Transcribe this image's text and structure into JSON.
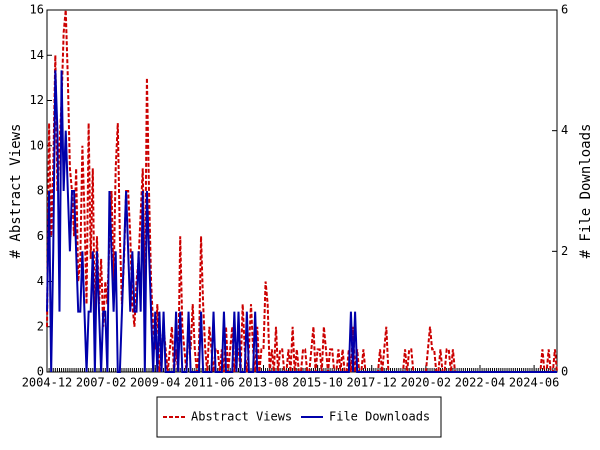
{
  "chart_data": {
    "type": "line",
    "categories": [
      "2004-12",
      null,
      null,
      null,
      null,
      null,
      null,
      null,
      null,
      null,
      null,
      null,
      null,
      null,
      null,
      null,
      null,
      null,
      null,
      null,
      null,
      null,
      null,
      null,
      null,
      null,
      "2007-02",
      null,
      null,
      null,
      null,
      null,
      null,
      null,
      null,
      null,
      null,
      null,
      null,
      null,
      null,
      null,
      null,
      null,
      null,
      null,
      null,
      null,
      null,
      null,
      null,
      null,
      "2009-04",
      null,
      null,
      null,
      null,
      null,
      null,
      null,
      null,
      null,
      null,
      null,
      null,
      null,
      null,
      null,
      null,
      null,
      null,
      null,
      null,
      null,
      null,
      null,
      null,
      null,
      "2011-06",
      null,
      null,
      null,
      null,
      null,
      null,
      null,
      null,
      null,
      null,
      null,
      null,
      null,
      null,
      null,
      null,
      null,
      null,
      null,
      null,
      null,
      null,
      null,
      null,
      null,
      "2013-08",
      null,
      null,
      null,
      null,
      null,
      null,
      null,
      null,
      null,
      null,
      null,
      null,
      null,
      null,
      null,
      null,
      null,
      null,
      null,
      null,
      null,
      null,
      null,
      null,
      null,
      "2015-10",
      null,
      null,
      null,
      null,
      null,
      null,
      null,
      null,
      null,
      null,
      null,
      null,
      null,
      null,
      null,
      null,
      null,
      null,
      null,
      null,
      null,
      null,
      null,
      null,
      null,
      "2017-12",
      null,
      null,
      null,
      null,
      null,
      null,
      null,
      null,
      null,
      null,
      null,
      null,
      null,
      null,
      null,
      null,
      null,
      null,
      null,
      null,
      null,
      null,
      null,
      null,
      null,
      "2020-02",
      null,
      null,
      null,
      null,
      null,
      null,
      null,
      null,
      null,
      null,
      null,
      null,
      null,
      null,
      null,
      null,
      null,
      null,
      null,
      null,
      null,
      null,
      null,
      null,
      null,
      "2022-04",
      null,
      null,
      null,
      null,
      null,
      null,
      null,
      null,
      null,
      null,
      null,
      null,
      null,
      null,
      null,
      null,
      null,
      null,
      null,
      null,
      null,
      null,
      null,
      null,
      null,
      "2024-06",
      null,
      null,
      null,
      null,
      null,
      null,
      null,
      null,
      null,
      null,
      null
    ],
    "ylabel": "# Abstract Views",
    "y2label": "# File Downloads",
    "ylim": [
      0,
      16
    ],
    "yticks": [
      0,
      2,
      4,
      6,
      8,
      10,
      12,
      14,
      16
    ],
    "y2lim": [
      0,
      6
    ],
    "y2ticks": [
      0,
      2,
      4,
      6
    ],
    "legend": "bottom",
    "series": [
      {
        "name": "Abstract Views",
        "color": "#cc0000",
        "dash": true,
        "values": [
          2,
          11,
          6,
          9,
          14,
          8,
          10,
          12,
          15,
          16,
          13,
          9,
          8,
          6,
          9,
          4,
          5,
          10,
          7,
          3,
          11,
          5,
          9,
          2,
          6,
          3,
          5,
          2,
          4,
          3,
          6,
          8,
          4,
          9,
          11,
          6,
          3,
          5,
          8,
          8,
          6,
          3,
          2,
          4,
          5,
          7,
          9,
          3,
          13,
          8,
          4,
          2,
          1,
          3,
          0,
          1,
          2,
          1,
          0,
          1,
          2,
          0,
          1,
          0,
          6,
          2,
          1,
          0,
          2,
          1,
          3,
          1,
          0,
          1,
          6,
          3,
          1,
          0,
          2,
          1,
          0,
          1,
          1,
          0,
          1,
          0,
          2,
          0,
          1,
          2,
          0,
          1,
          1,
          0,
          3,
          1,
          0,
          1,
          3,
          1,
          0,
          2,
          0,
          1,
          1,
          4,
          3,
          0,
          1,
          0,
          2,
          0,
          1,
          1,
          0,
          0,
          1,
          0,
          2,
          0,
          1,
          0,
          0,
          1,
          1,
          0,
          0,
          1,
          2,
          0,
          1,
          1,
          0,
          2,
          1,
          0,
          1,
          1,
          0,
          0,
          1,
          0,
          1,
          0,
          0,
          1,
          0,
          2,
          0,
          1,
          0,
          0,
          1,
          0,
          0,
          0,
          0,
          0,
          0,
          0,
          1,
          0,
          1,
          2,
          0,
          0,
          0,
          0,
          0,
          0,
          0,
          0,
          1,
          0,
          1,
          1,
          0,
          0,
          0,
          0,
          0,
          0,
          0,
          1,
          2,
          1,
          1,
          0,
          0,
          1,
          0,
          0,
          1,
          1,
          0,
          1,
          0,
          0,
          0,
          0,
          0,
          0,
          0,
          0,
          0,
          0,
          0,
          0,
          0,
          0,
          0,
          0,
          0,
          0,
          0,
          0,
          0,
          0,
          0,
          0,
          0,
          0,
          0,
          0,
          0,
          0,
          0,
          0,
          0,
          0,
          0,
          0,
          0,
          0,
          0,
          0,
          0,
          0,
          1,
          0,
          0,
          1,
          0,
          0,
          1,
          0
        ]
      },
      {
        "name": "File Downloads",
        "color": "#0000aa",
        "axis": "y2",
        "values": [
          1,
          3,
          0,
          2,
          5,
          4,
          1,
          5,
          3,
          4,
          3,
          2,
          3,
          3,
          2,
          1,
          1,
          2,
          1,
          0,
          1,
          1,
          2,
          0,
          2,
          1,
          0,
          1,
          1,
          0,
          3,
          2,
          1,
          2,
          0,
          0,
          1,
          2,
          3,
          2,
          1,
          2,
          1,
          1,
          2,
          1,
          3,
          0,
          3,
          2,
          1,
          0,
          1,
          0,
          1,
          0,
          1,
          0,
          0,
          0,
          0,
          0,
          1,
          0,
          1,
          0,
          0,
          0,
          1,
          0,
          0,
          0,
          0,
          0,
          1,
          0,
          0,
          0,
          0,
          0,
          1,
          0,
          0,
          0,
          0,
          1,
          0,
          0,
          0,
          0,
          1,
          0,
          1,
          0,
          0,
          0,
          1,
          0,
          0,
          0,
          1,
          0,
          0,
          0,
          0,
          0,
          0,
          0,
          0,
          0,
          0,
          0,
          0,
          0,
          0,
          0,
          0,
          0,
          0,
          0,
          0,
          0,
          0,
          0,
          0,
          0,
          0,
          0,
          0,
          0,
          0,
          0,
          0,
          0,
          0,
          0,
          0,
          0,
          0,
          0,
          0,
          0,
          0,
          0,
          0,
          0,
          1,
          0,
          1,
          0,
          0,
          0,
          0,
          0,
          0,
          0,
          0,
          0,
          0,
          0,
          0,
          0,
          0,
          0,
          0,
          0,
          0,
          0,
          0,
          0,
          0,
          0,
          0,
          0,
          0,
          0,
          0,
          0,
          0,
          0,
          0,
          0,
          0,
          0,
          0,
          0,
          0,
          0,
          0,
          0,
          0,
          0,
          0,
          0,
          0,
          0,
          0,
          0,
          0,
          0,
          0,
          0,
          0,
          0,
          0,
          0,
          0,
          0,
          0,
          0,
          0,
          0,
          0,
          0,
          0,
          0,
          0,
          0,
          0,
          0,
          0,
          0,
          0,
          0,
          0,
          0,
          0,
          0,
          0,
          0,
          0,
          0,
          0,
          0,
          0,
          0,
          0,
          0,
          0,
          0,
          0,
          0,
          0,
          0,
          0,
          0
        ]
      }
    ]
  }
}
